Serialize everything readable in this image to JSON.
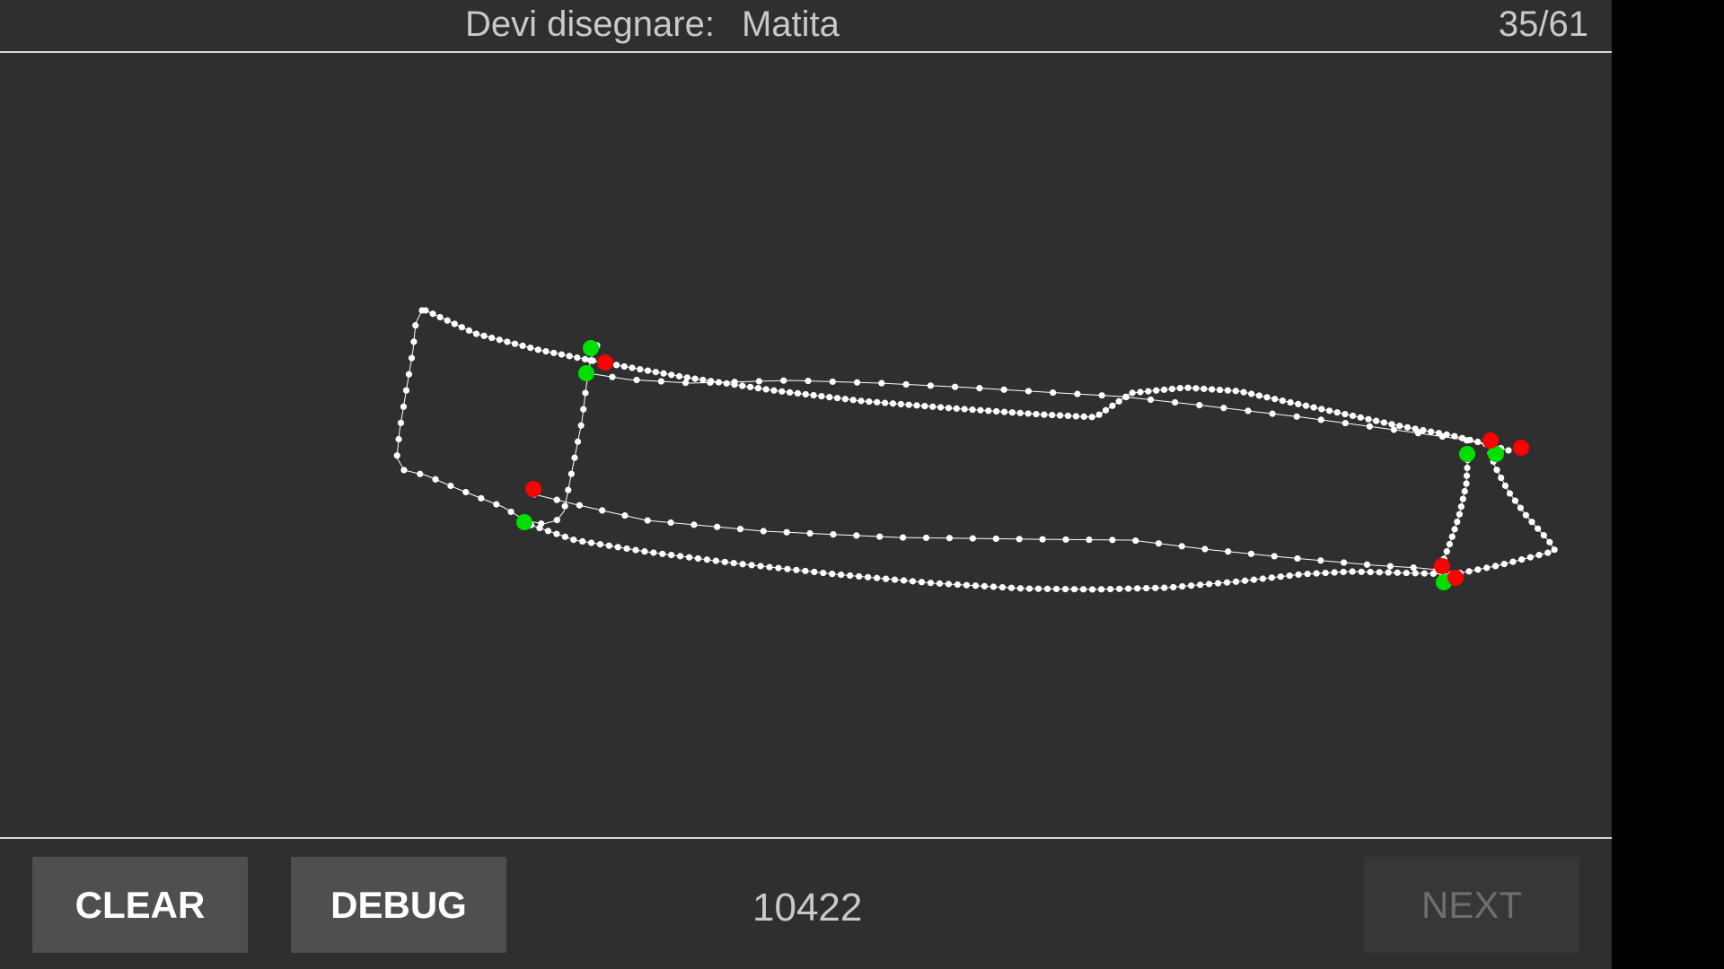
{
  "header": {
    "prompt_label": "Devi disegnare:",
    "target_word": "Matita",
    "progress": "35/61"
  },
  "footer": {
    "clear_label": "CLEAR",
    "debug_label": "DEBUG",
    "score": "10422",
    "next_label": "NEXT"
  },
  "drawing": {
    "point_color": "#ffffff",
    "stroke_start_color": "#00e000",
    "stroke_end_color": "#ff0000"
  }
}
